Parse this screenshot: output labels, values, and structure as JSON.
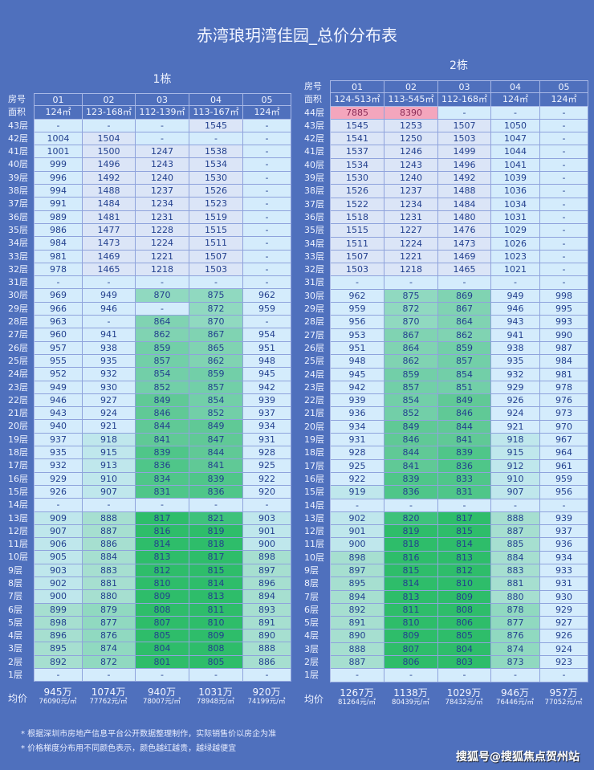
{
  "title": "赤湾琅玥湾佳园_总价分布表",
  "colors": {
    "background": "#4f70bd",
    "premium": "#f4a6bd",
    "high": "#dbe5f7",
    "mid": "#d4ecfc",
    "low": "#2cbc68"
  },
  "buildings": [
    {
      "title": "1栋",
      "room_label": "房号",
      "area_label": "面积",
      "avg_label": "均价",
      "units": [
        {
          "no": "01",
          "area": "124㎡"
        },
        {
          "no": "02",
          "area": "123-168㎡"
        },
        {
          "no": "03",
          "area": "112-139㎡"
        },
        {
          "no": "04",
          "area": "113-167㎡"
        },
        {
          "no": "05",
          "area": "124㎡"
        }
      ],
      "floors": [
        {
          "label": "43层",
          "prices": [
            "-",
            "-",
            "-",
            "1545",
            "-"
          ]
        },
        {
          "label": "42层",
          "prices": [
            "1004",
            "1504",
            "-",
            "-",
            "-"
          ]
        },
        {
          "label": "41层",
          "prices": [
            "1001",
            "1500",
            "1247",
            "1538",
            "-"
          ]
        },
        {
          "label": "40层",
          "prices": [
            "999",
            "1496",
            "1243",
            "1534",
            "-"
          ]
        },
        {
          "label": "39层",
          "prices": [
            "996",
            "1492",
            "1240",
            "1530",
            "-"
          ]
        },
        {
          "label": "38层",
          "prices": [
            "994",
            "1488",
            "1237",
            "1526",
            "-"
          ]
        },
        {
          "label": "37层",
          "prices": [
            "991",
            "1484",
            "1234",
            "1523",
            "-"
          ]
        },
        {
          "label": "36层",
          "prices": [
            "989",
            "1481",
            "1231",
            "1519",
            "-"
          ]
        },
        {
          "label": "35层",
          "prices": [
            "986",
            "1477",
            "1228",
            "1515",
            "-"
          ]
        },
        {
          "label": "34层",
          "prices": [
            "984",
            "1473",
            "1224",
            "1511",
            "-"
          ]
        },
        {
          "label": "33层",
          "prices": [
            "981",
            "1469",
            "1221",
            "1507",
            "-"
          ]
        },
        {
          "label": "32层",
          "prices": [
            "978",
            "1465",
            "1218",
            "1503",
            "-"
          ]
        },
        {
          "label": "31层",
          "prices": [
            "-",
            "-",
            "-",
            "-",
            "-"
          ]
        },
        {
          "label": "30层",
          "prices": [
            "969",
            "949",
            "870",
            "875",
            "962"
          ]
        },
        {
          "label": "29层",
          "prices": [
            "966",
            "946",
            "-",
            "872",
            "959"
          ]
        },
        {
          "label": "28层",
          "prices": [
            "963",
            "-",
            "864",
            "870",
            "-"
          ]
        },
        {
          "label": "27层",
          "prices": [
            "960",
            "941",
            "862",
            "867",
            "954"
          ]
        },
        {
          "label": "26层",
          "prices": [
            "957",
            "938",
            "859",
            "865",
            "951"
          ]
        },
        {
          "label": "25层",
          "prices": [
            "955",
            "935",
            "857",
            "862",
            "948"
          ]
        },
        {
          "label": "24层",
          "prices": [
            "952",
            "932",
            "854",
            "859",
            "945"
          ]
        },
        {
          "label": "23层",
          "prices": [
            "949",
            "930",
            "852",
            "857",
            "942"
          ]
        },
        {
          "label": "22层",
          "prices": [
            "946",
            "927",
            "849",
            "854",
            "939"
          ]
        },
        {
          "label": "21层",
          "prices": [
            "943",
            "924",
            "846",
            "852",
            "937"
          ]
        },
        {
          "label": "20层",
          "prices": [
            "940",
            "921",
            "844",
            "849",
            "934"
          ]
        },
        {
          "label": "19层",
          "prices": [
            "937",
            "918",
            "841",
            "847",
            "931"
          ]
        },
        {
          "label": "18层",
          "prices": [
            "935",
            "915",
            "839",
            "844",
            "928"
          ]
        },
        {
          "label": "17层",
          "prices": [
            "932",
            "913",
            "836",
            "841",
            "925"
          ]
        },
        {
          "label": "16层",
          "prices": [
            "929",
            "910",
            "834",
            "839",
            "922"
          ]
        },
        {
          "label": "15层",
          "prices": [
            "926",
            "907",
            "831",
            "836",
            "920"
          ]
        },
        {
          "label": "14层",
          "prices": [
            "-",
            "-",
            "-",
            "-",
            "-"
          ]
        },
        {
          "label": "13层",
          "prices": [
            "909",
            "888",
            "817",
            "821",
            "903"
          ]
        },
        {
          "label": "12层",
          "prices": [
            "907",
            "887",
            "816",
            "819",
            "901"
          ]
        },
        {
          "label": "11层",
          "prices": [
            "906",
            "886",
            "814",
            "818",
            "900"
          ]
        },
        {
          "label": "10层",
          "prices": [
            "905",
            "884",
            "813",
            "817",
            "898"
          ]
        },
        {
          "label": "9层",
          "prices": [
            "903",
            "883",
            "812",
            "815",
            "897"
          ]
        },
        {
          "label": "8层",
          "prices": [
            "902",
            "881",
            "810",
            "814",
            "896"
          ]
        },
        {
          "label": "7层",
          "prices": [
            "900",
            "880",
            "809",
            "813",
            "894"
          ]
        },
        {
          "label": "6层",
          "prices": [
            "899",
            "879",
            "808",
            "811",
            "893"
          ]
        },
        {
          "label": "5层",
          "prices": [
            "898",
            "877",
            "807",
            "810",
            "891"
          ]
        },
        {
          "label": "4层",
          "prices": [
            "896",
            "876",
            "805",
            "809",
            "890"
          ]
        },
        {
          "label": "3层",
          "prices": [
            "895",
            "874",
            "804",
            "808",
            "888"
          ]
        },
        {
          "label": "2层",
          "prices": [
            "892",
            "872",
            "801",
            "805",
            "886"
          ]
        },
        {
          "label": "1层",
          "prices": [
            "-",
            "-",
            "-",
            "-",
            "-"
          ]
        }
      ],
      "averages": [
        {
          "total": "945万",
          "per_sqm": "76090元/㎡"
        },
        {
          "total": "1074万",
          "per_sqm": "77762元/㎡"
        },
        {
          "total": "940万",
          "per_sqm": "78007元/㎡"
        },
        {
          "total": "1031万",
          "per_sqm": "78948元/㎡"
        },
        {
          "total": "920万",
          "per_sqm": "74199元/㎡"
        }
      ]
    },
    {
      "title": "2栋",
      "room_label": "房号",
      "area_label": "面积",
      "avg_label": "均价",
      "units": [
        {
          "no": "01",
          "area": "124-513㎡"
        },
        {
          "no": "02",
          "area": "113-545㎡"
        },
        {
          "no": "03",
          "area": "112-168㎡"
        },
        {
          "no": "04",
          "area": "124㎡"
        },
        {
          "no": "05",
          "area": "124㎡"
        }
      ],
      "floors": [
        {
          "label": "44层",
          "prices": [
            "7885",
            "8390",
            "-",
            "-",
            "-"
          ]
        },
        {
          "label": "43层",
          "prices": [
            "1545",
            "1253",
            "1507",
            "1050",
            "-"
          ]
        },
        {
          "label": "42层",
          "prices": [
            "1541",
            "1250",
            "1503",
            "1047",
            "-"
          ]
        },
        {
          "label": "41层",
          "prices": [
            "1537",
            "1246",
            "1499",
            "1044",
            "-"
          ]
        },
        {
          "label": "40层",
          "prices": [
            "1534",
            "1243",
            "1496",
            "1041",
            "-"
          ]
        },
        {
          "label": "39层",
          "prices": [
            "1530",
            "1240",
            "1492",
            "1039",
            "-"
          ]
        },
        {
          "label": "38层",
          "prices": [
            "1526",
            "1237",
            "1488",
            "1036",
            "-"
          ]
        },
        {
          "label": "37层",
          "prices": [
            "1522",
            "1234",
            "1484",
            "1034",
            "-"
          ]
        },
        {
          "label": "36层",
          "prices": [
            "1518",
            "1231",
            "1480",
            "1031",
            "-"
          ]
        },
        {
          "label": "35层",
          "prices": [
            "1515",
            "1227",
            "1476",
            "1029",
            "-"
          ]
        },
        {
          "label": "34层",
          "prices": [
            "1511",
            "1224",
            "1473",
            "1026",
            "-"
          ]
        },
        {
          "label": "33层",
          "prices": [
            "1507",
            "1221",
            "1469",
            "1023",
            "-"
          ]
        },
        {
          "label": "32层",
          "prices": [
            "1503",
            "1218",
            "1465",
            "1021",
            "-"
          ]
        },
        {
          "label": "31层",
          "prices": [
            "-",
            "-",
            "-",
            "-",
            "-"
          ]
        },
        {
          "label": "30层",
          "prices": [
            "962",
            "875",
            "869",
            "949",
            "998"
          ]
        },
        {
          "label": "29层",
          "prices": [
            "959",
            "872",
            "867",
            "946",
            "995"
          ]
        },
        {
          "label": "28层",
          "prices": [
            "956",
            "870",
            "864",
            "943",
            "993"
          ]
        },
        {
          "label": "27层",
          "prices": [
            "953",
            "867",
            "862",
            "941",
            "990"
          ]
        },
        {
          "label": "26层",
          "prices": [
            "951",
            "864",
            "859",
            "938",
            "987"
          ]
        },
        {
          "label": "25层",
          "prices": [
            "948",
            "862",
            "857",
            "935",
            "984"
          ]
        },
        {
          "label": "24层",
          "prices": [
            "945",
            "859",
            "854",
            "932",
            "981"
          ]
        },
        {
          "label": "23层",
          "prices": [
            "942",
            "857",
            "851",
            "929",
            "978"
          ]
        },
        {
          "label": "22层",
          "prices": [
            "939",
            "854",
            "849",
            "926",
            "976"
          ]
        },
        {
          "label": "21层",
          "prices": [
            "936",
            "852",
            "846",
            "924",
            "973"
          ]
        },
        {
          "label": "20层",
          "prices": [
            "934",
            "849",
            "844",
            "921",
            "970"
          ]
        },
        {
          "label": "19层",
          "prices": [
            "931",
            "846",
            "841",
            "918",
            "967"
          ]
        },
        {
          "label": "18层",
          "prices": [
            "928",
            "844",
            "839",
            "915",
            "964"
          ]
        },
        {
          "label": "17层",
          "prices": [
            "925",
            "841",
            "836",
            "912",
            "961"
          ]
        },
        {
          "label": "16层",
          "prices": [
            "922",
            "839",
            "833",
            "910",
            "959"
          ]
        },
        {
          "label": "15层",
          "prices": [
            "919",
            "836",
            "831",
            "907",
            "956"
          ]
        },
        {
          "label": "14层",
          "prices": [
            "-",
            "-",
            "-",
            "-",
            "-"
          ]
        },
        {
          "label": "13层",
          "prices": [
            "902",
            "820",
            "817",
            "888",
            "939"
          ]
        },
        {
          "label": "12层",
          "prices": [
            "901",
            "819",
            "815",
            "887",
            "937"
          ]
        },
        {
          "label": "11层",
          "prices": [
            "900",
            "818",
            "814",
            "885",
            "936"
          ]
        },
        {
          "label": "10层",
          "prices": [
            "898",
            "816",
            "813",
            "884",
            "934"
          ]
        },
        {
          "label": "9层",
          "prices": [
            "897",
            "815",
            "812",
            "883",
            "933"
          ]
        },
        {
          "label": "8层",
          "prices": [
            "895",
            "814",
            "810",
            "881",
            "931"
          ]
        },
        {
          "label": "7层",
          "prices": [
            "894",
            "813",
            "809",
            "880",
            "930"
          ]
        },
        {
          "label": "6层",
          "prices": [
            "892",
            "811",
            "808",
            "878",
            "929"
          ]
        },
        {
          "label": "5层",
          "prices": [
            "891",
            "810",
            "806",
            "877",
            "927"
          ]
        },
        {
          "label": "4层",
          "prices": [
            "890",
            "809",
            "805",
            "876",
            "926"
          ]
        },
        {
          "label": "3层",
          "prices": [
            "888",
            "807",
            "804",
            "874",
            "924"
          ]
        },
        {
          "label": "2层",
          "prices": [
            "887",
            "806",
            "803",
            "873",
            "923"
          ]
        },
        {
          "label": "1层",
          "prices": [
            "-",
            "-",
            "-",
            "-",
            "-"
          ]
        }
      ],
      "averages": [
        {
          "total": "1267万",
          "per_sqm": "81264元/㎡"
        },
        {
          "total": "1138万",
          "per_sqm": "80439元/㎡"
        },
        {
          "total": "1029万",
          "per_sqm": "78432元/㎡"
        },
        {
          "total": "946万",
          "per_sqm": "76446元/㎡"
        },
        {
          "total": "957万",
          "per_sqm": "77052元/㎡"
        }
      ]
    }
  ],
  "notes": [
    "* 根据深圳市房地产信息平台公开数据整理制作，实际销售价以房企为准",
    "* 价格梯度分布用不同颜色表示，颜色越红越贵，越绿越便宜"
  ],
  "watermark": "搜狐号@搜狐焦点贺州站"
}
